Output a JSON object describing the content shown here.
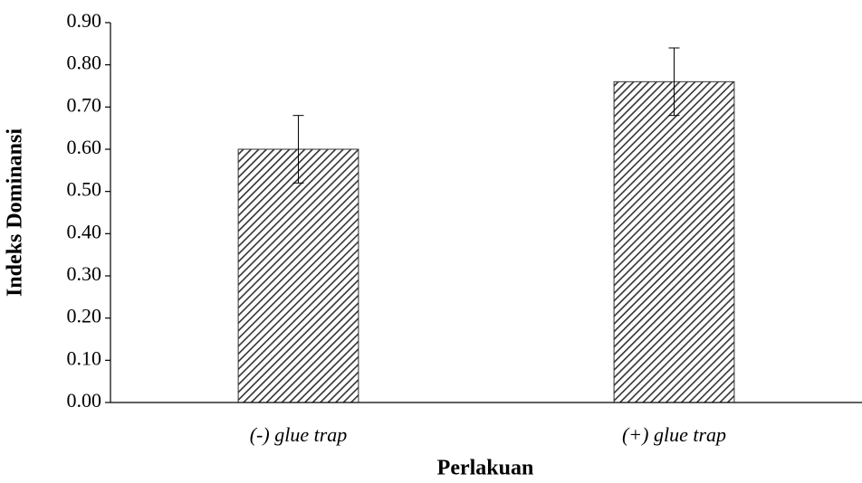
{
  "chart_data": {
    "type": "bar",
    "ylabel": "Indeks Dominansi",
    "xlabel": "Perlakuan",
    "categories": [
      "(-) glue trap",
      "(+) glue trap"
    ],
    "values": [
      0.6,
      0.76
    ],
    "errors": [
      0.08,
      0.08
    ],
    "color": "#333333",
    "ylim": [
      0,
      0.9
    ],
    "yticks": [
      {
        "value": 0,
        "label": "0.00"
      },
      {
        "value": 0.1,
        "label": "0.10"
      },
      {
        "value": 0.2,
        "label": "0.20"
      },
      {
        "value": 0.3,
        "label": "0.30"
      },
      {
        "value": 0.4,
        "label": "0.40"
      },
      {
        "value": 0.5,
        "label": "0.50"
      },
      {
        "value": 0.6,
        "label": "0.60"
      },
      {
        "value": 0.7,
        "label": "0.70"
      },
      {
        "value": 0.8,
        "label": "0.80"
      },
      {
        "value": 0.9,
        "label": "0.90"
      }
    ],
    "grid": false
  }
}
